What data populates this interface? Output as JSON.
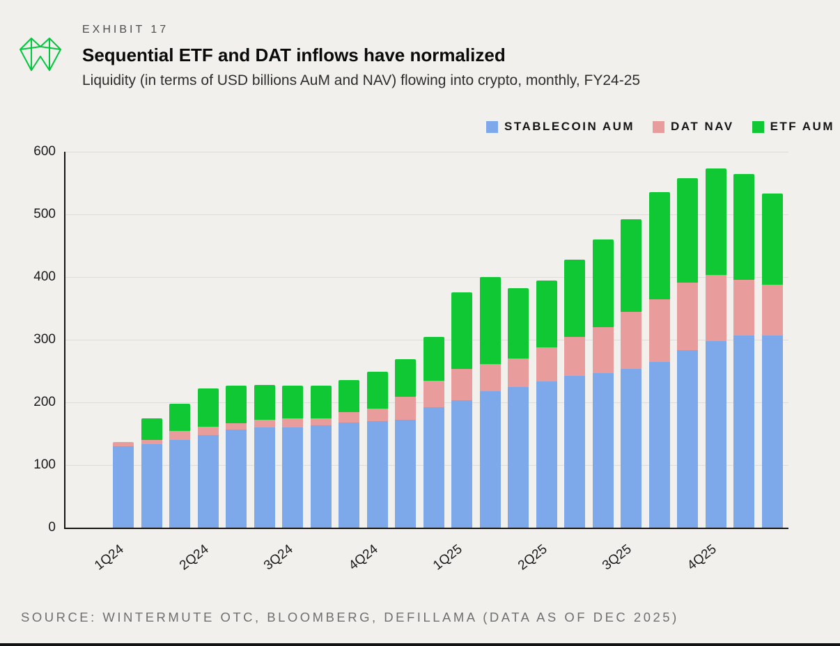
{
  "header": {
    "exhibit": "EXHIBIT 17",
    "title": "Sequential ETF and DAT inflows have normalized",
    "subtitle": "Liquidity (in terms of USD billions AuM and NAV) flowing into crypto, monthly, FY24-25"
  },
  "legend": [
    {
      "label": "STABLECOIN AUM",
      "color": "#7da9ea"
    },
    {
      "label": "DAT NAV",
      "color": "#e99c9c"
    },
    {
      "label": "ETF AUM",
      "color": "#10c734"
    }
  ],
  "source": "SOURCE: WINTERMUTE OTC, BLOOMBERG, DEFILLAMA (DATA AS OF DEC 2025)",
  "brand": {
    "logo_color": "#00c83c"
  },
  "chart_data": {
    "type": "bar",
    "stacked": true,
    "title": "Sequential ETF and DAT inflows have normalized",
    "xlabel": "",
    "ylabel": "USD billions",
    "ylim": [
      0,
      600
    ],
    "y_ticks": [
      0,
      100,
      200,
      300,
      400,
      500,
      600
    ],
    "grid": true,
    "legend_position": "top-right",
    "n_bars": 24,
    "x_tick_labels": [
      "1Q24",
      "2Q24",
      "3Q24",
      "4Q24",
      "1Q25",
      "2Q25",
      "3Q25",
      "4Q25"
    ],
    "x_tick_bar_indices": [
      0,
      3,
      6,
      9,
      12,
      15,
      18,
      21
    ],
    "series": [
      {
        "name": "STABLECOIN AUM",
        "color": "#7da9ea",
        "values": [
          130,
          133,
          140,
          148,
          157,
          160,
          160,
          163,
          168,
          170,
          172,
          192,
          203,
          218,
          225,
          233,
          242,
          247,
          253,
          265,
          283,
          298,
          307,
          307
        ]
      },
      {
        "name": "DAT NAV",
        "color": "#e99c9c",
        "values": [
          7,
          7,
          15,
          13,
          10,
          12,
          15,
          12,
          17,
          20,
          37,
          43,
          50,
          43,
          45,
          55,
          63,
          73,
          91,
          100,
          108,
          105,
          89,
          81
        ]
      },
      {
        "name": "ETF AUM",
        "color": "#10c734",
        "values": [
          0,
          35,
          43,
          61,
          60,
          56,
          52,
          52,
          51,
          59,
          60,
          70,
          123,
          139,
          112,
          107,
          123,
          140,
          148,
          171,
          167,
          170,
          168,
          145
        ]
      }
    ]
  }
}
